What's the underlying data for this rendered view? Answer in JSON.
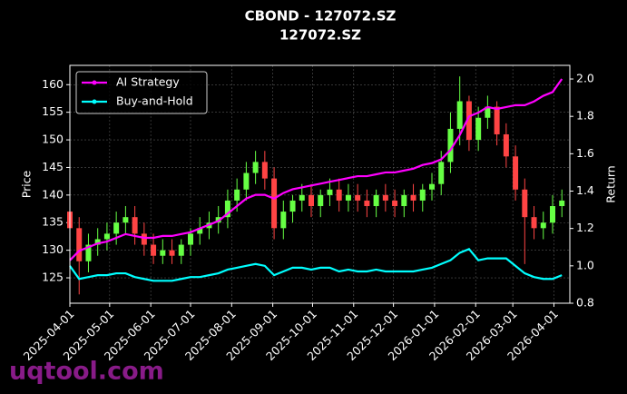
{
  "chart_data": {
    "type": "candlestick",
    "title": "CBOND - 127072.SZ",
    "subtitle": "127072.SZ",
    "ylabel": "Price",
    "y2label": "Return",
    "watermark": "uqtool.com",
    "grid": true,
    "legend": "upper left",
    "up_color": "#66ff44",
    "down_color": "#ff4444",
    "xlim": [
      "2025-04-01",
      "2026-04-13"
    ],
    "xticks": [
      "2025-04-01",
      "2025-05-01",
      "2025-06-01",
      "2025-07-01",
      "2025-08-01",
      "2025-09-01",
      "2025-10-01",
      "2025-11-01",
      "2025-12-01",
      "2026-01-01",
      "2026-02-01",
      "2026-03-01",
      "2026-04-01"
    ],
    "ylim": [
      120.4,
      163.5
    ],
    "yticks": [
      125,
      130,
      135,
      140,
      145,
      150,
      155,
      160
    ],
    "y2lim": [
      0.8,
      2.073
    ],
    "y2ticks": [
      0.8,
      {
        "value": 1,
        "label": "1.0"
      },
      1.2,
      1.4,
      1.6,
      1.8,
      {
        "value": 2,
        "label": "2.0"
      }
    ],
    "x": [
      "2025-04-01",
      "2025-04-08",
      "2025-04-15",
      "2025-04-22",
      "2025-04-29",
      "2025-05-06",
      "2025-05-13",
      "2025-05-20",
      "2025-05-27",
      "2025-06-03",
      "2025-06-10",
      "2025-06-17",
      "2025-06-24",
      "2025-07-01",
      "2025-07-08",
      "2025-07-15",
      "2025-07-22",
      "2025-07-29",
      "2025-08-05",
      "2025-08-12",
      "2025-08-19",
      "2025-08-26",
      "2025-09-02",
      "2025-09-09",
      "2025-09-16",
      "2025-09-23",
      "2025-09-30",
      "2025-10-07",
      "2025-10-14",
      "2025-10-21",
      "2025-10-28",
      "2025-11-04",
      "2025-11-11",
      "2025-11-18",
      "2025-11-25",
      "2025-12-02",
      "2025-12-09",
      "2025-12-16",
      "2025-12-23",
      "2025-12-30",
      "2026-01-06",
      "2026-01-13",
      "2026-01-20",
      "2026-01-27",
      "2026-02-03",
      "2026-02-10",
      "2026-02-17",
      "2026-02-24",
      "2026-03-03",
      "2026-03-10",
      "2026-03-17",
      "2026-03-24",
      "2026-03-31",
      "2026-04-07"
    ],
    "open": [
      137,
      134,
      128,
      131,
      132,
      133,
      135,
      136,
      133,
      131,
      129,
      130,
      129,
      131,
      133,
      134,
      135,
      136,
      139,
      141,
      144,
      146,
      143,
      134,
      137,
      139,
      140,
      138,
      140,
      141,
      139,
      140,
      139,
      138,
      140,
      139,
      138,
      140,
      139,
      141,
      142,
      146,
      152,
      157,
      150,
      154,
      156,
      151,
      147,
      141,
      136,
      134,
      135,
      138
    ],
    "high": [
      139,
      136,
      133,
      134,
      135,
      137,
      138,
      138,
      135,
      133,
      132,
      132,
      132,
      134,
      136,
      137,
      138,
      141,
      143,
      146,
      148,
      148,
      145,
      139,
      140,
      142,
      142,
      141,
      143,
      143,
      142,
      142,
      141,
      141,
      142,
      141,
      141,
      142,
      142,
      144,
      148,
      155,
      161.5,
      158,
      156,
      158,
      157,
      153,
      149,
      143,
      138,
      137,
      140,
      141
    ],
    "low": [
      133,
      122,
      126,
      129,
      130,
      131,
      133,
      131,
      129,
      127.5,
      127.5,
      127.5,
      127.5,
      129,
      131,
      132,
      133,
      134,
      137,
      139,
      142,
      141,
      132,
      132,
      135,
      137,
      136,
      136,
      138,
      137,
      137,
      137,
      136,
      136,
      137,
      136,
      136,
      137,
      137,
      139,
      140,
      144,
      149,
      148,
      148,
      152,
      149,
      145,
      139,
      127.5,
      132,
      132,
      133,
      136
    ],
    "close": [
      134,
      128,
      131,
      132,
      133,
      135,
      136,
      133,
      131,
      129,
      130,
      129,
      131,
      133,
      134,
      135,
      136,
      139,
      141,
      144,
      146,
      143,
      134,
      137,
      139,
      140,
      138,
      140,
      141,
      139,
      140,
      139,
      138,
      140,
      139,
      138,
      140,
      139,
      141,
      142,
      146,
      152,
      157,
      150,
      154,
      156,
      151,
      147,
      141,
      136,
      134,
      135,
      138,
      139
    ],
    "series": [
      {
        "name": "AI Strategy",
        "color": "#ff00ff",
        "axis": "y2",
        "values": [
          1.03,
          1.08,
          1.1,
          1.12,
          1.13,
          1.15,
          1.17,
          1.16,
          1.15,
          1.15,
          1.16,
          1.16,
          1.17,
          1.18,
          1.2,
          1.22,
          1.24,
          1.28,
          1.32,
          1.36,
          1.38,
          1.38,
          1.36,
          1.39,
          1.41,
          1.42,
          1.43,
          1.44,
          1.45,
          1.46,
          1.47,
          1.48,
          1.48,
          1.49,
          1.5,
          1.5,
          1.51,
          1.52,
          1.54,
          1.55,
          1.57,
          1.62,
          1.7,
          1.8,
          1.82,
          1.85,
          1.84,
          1.85,
          1.86,
          1.86,
          1.88,
          1.91,
          1.93,
          2.0
        ]
      },
      {
        "name": "Buy-and-Hold",
        "color": "#00ffff",
        "axis": "y2",
        "values": [
          1.0,
          0.93,
          0.94,
          0.95,
          0.95,
          0.96,
          0.96,
          0.94,
          0.93,
          0.92,
          0.92,
          0.92,
          0.93,
          0.94,
          0.94,
          0.95,
          0.96,
          0.98,
          0.99,
          1.0,
          1.01,
          1.0,
          0.95,
          0.97,
          0.99,
          0.99,
          0.98,
          0.99,
          0.99,
          0.97,
          0.98,
          0.97,
          0.97,
          0.98,
          0.97,
          0.97,
          0.97,
          0.97,
          0.98,
          0.99,
          1.01,
          1.03,
          1.07,
          1.09,
          1.03,
          1.04,
          1.04,
          1.04,
          1.0,
          0.96,
          0.94,
          0.93,
          0.93,
          0.95
        ]
      }
    ]
  }
}
